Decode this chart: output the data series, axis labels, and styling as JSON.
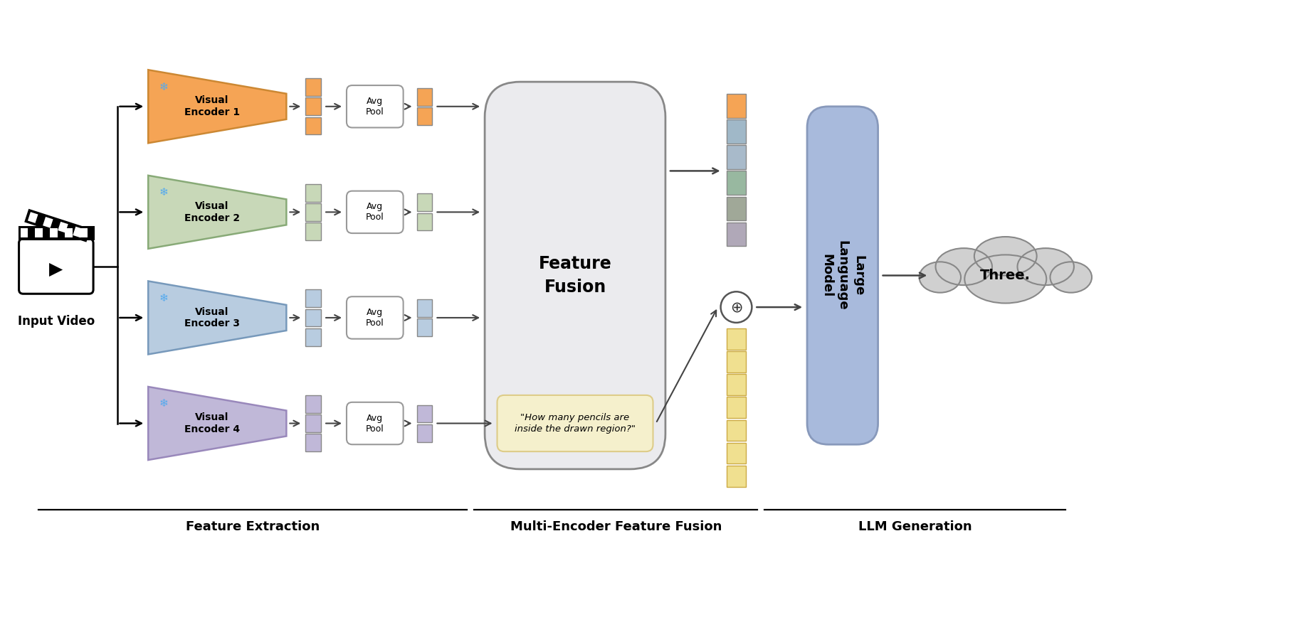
{
  "encoder_colors": [
    "#F5A455",
    "#C8D8B8",
    "#B8CCE0",
    "#C0B8D8"
  ],
  "encoder_edge_colors": [
    "#CC8833",
    "#88AA77",
    "#7799BB",
    "#9988BB"
  ],
  "encoder_labels": [
    "Visual\nEncoder 1",
    "Visual\nEncoder 2",
    "Visual\nEncoder 3",
    "Visual\nEncoder 4"
  ],
  "feature_fusion_text": "Feature\nFusion",
  "feature_fusion_color": "#EBEBEE",
  "feature_fusion_edge": "#888888",
  "llm_color": "#A8BADC",
  "llm_edge": "#8899BB",
  "output_text": "Three.",
  "question_text": "\"How many pencils are\ninside the drawn region?\"",
  "question_box_color": "#F5F0CC",
  "question_box_edge": "#DDCC88",
  "section_labels": [
    "Feature Extraction",
    "Multi-Encoder Feature Fusion",
    "LLM Generation"
  ],
  "combined_upper_colors": [
    "#F5A455",
    "#A0B8C8",
    "#A8BACA",
    "#98B8A0",
    "#A0A898",
    "#B0A8B8"
  ],
  "text_token_color": "#F0E090",
  "text_token_edge": "#CCAA44",
  "n_text_tokens": 7,
  "arrow_color": "#444444",
  "token_edge_color": "#888888"
}
